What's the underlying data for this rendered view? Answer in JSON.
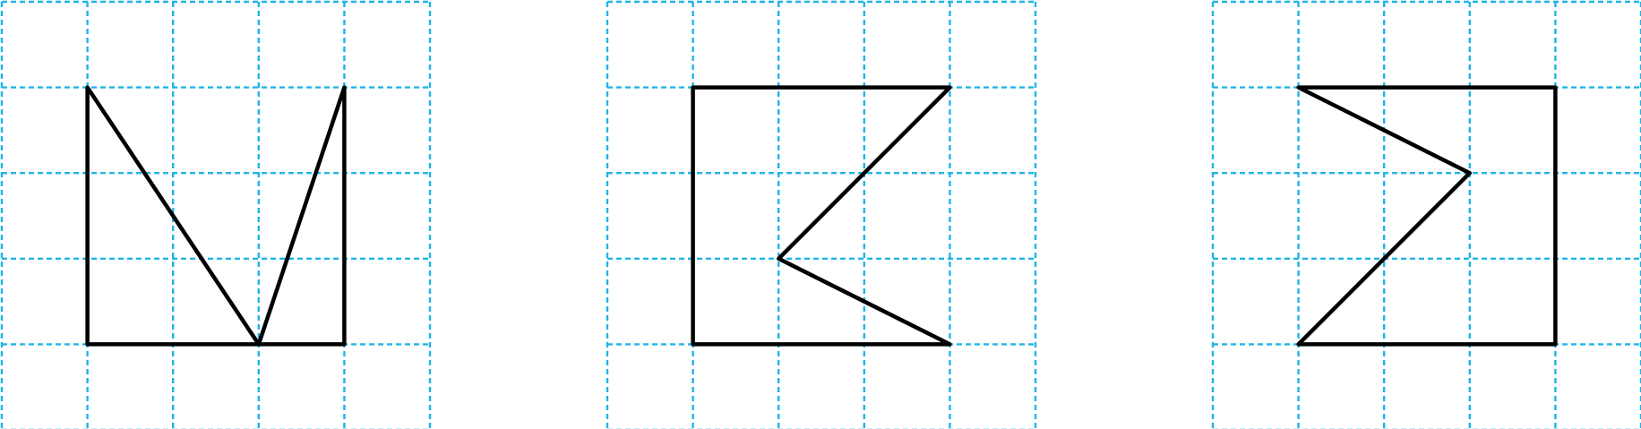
{
  "colors": {
    "grid": "#1fb5e6",
    "outline": "#000000",
    "background": "#ffffff"
  },
  "panels": [
    {
      "name": "figure-1",
      "grid": {
        "cols": 5,
        "rows": 5
      },
      "vertices": [
        [
          1,
          1
        ],
        [
          3,
          4
        ],
        [
          4,
          1
        ],
        [
          4,
          4
        ],
        [
          1,
          4
        ]
      ]
    },
    {
      "name": "figure-2",
      "grid": {
        "cols": 5,
        "rows": 5
      },
      "vertices": [
        [
          1,
          1
        ],
        [
          4,
          1
        ],
        [
          2,
          3
        ],
        [
          4,
          4
        ],
        [
          1,
          4
        ]
      ]
    },
    {
      "name": "figure-3",
      "grid": {
        "cols": 5,
        "rows": 5
      },
      "vertices": [
        [
          1,
          1
        ],
        [
          4,
          1
        ],
        [
          4,
          4
        ],
        [
          1,
          4
        ],
        [
          3,
          2
        ]
      ]
    }
  ]
}
